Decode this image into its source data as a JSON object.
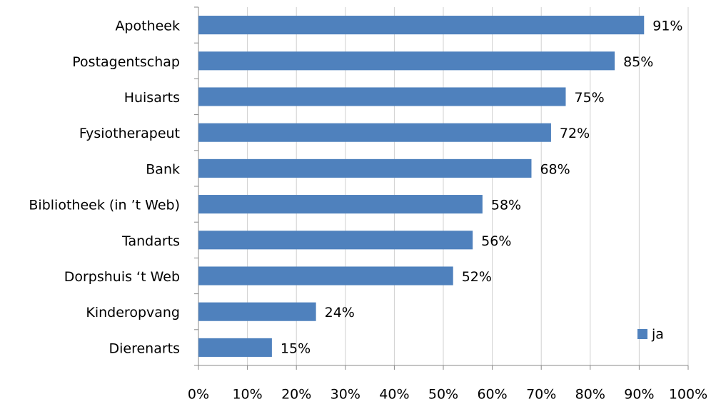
{
  "chart_data": {
    "type": "barh",
    "categories": [
      "Apotheek",
      "Postagentschap",
      "Huisarts",
      "Fysiotherapeut",
      "Bank",
      "Bibliotheek (in ’t Web)",
      "Tandarts",
      "Dorpshuis ‘t Web",
      "Kinderopvang",
      "Dierenarts"
    ],
    "series": [
      {
        "name": "ja",
        "color": "#4f81bd",
        "values": [
          91,
          85,
          75,
          72,
          68,
          58,
          56,
          52,
          24,
          15
        ],
        "value_labels": [
          "91%",
          "85%",
          "75%",
          "72%",
          "68%",
          "58%",
          "56%",
          "52%",
          "24%",
          "15%"
        ]
      }
    ],
    "xlim": [
      0,
      100
    ],
    "xticks": [
      {
        "value": 0,
        "label": "0%"
      },
      {
        "value": 10,
        "label": "10%"
      },
      {
        "value": 20,
        "label": "20%"
      },
      {
        "value": 30,
        "label": "30%"
      },
      {
        "value": 40,
        "label": "40%"
      },
      {
        "value": 50,
        "label": "50%"
      },
      {
        "value": 60,
        "label": "60%"
      },
      {
        "value": 70,
        "label": "70%"
      },
      {
        "value": 80,
        "label": "80%"
      },
      {
        "value": 90,
        "label": "90%"
      },
      {
        "value": 100,
        "label": "100%"
      }
    ],
    "grid": true,
    "legend": "lower right"
  }
}
